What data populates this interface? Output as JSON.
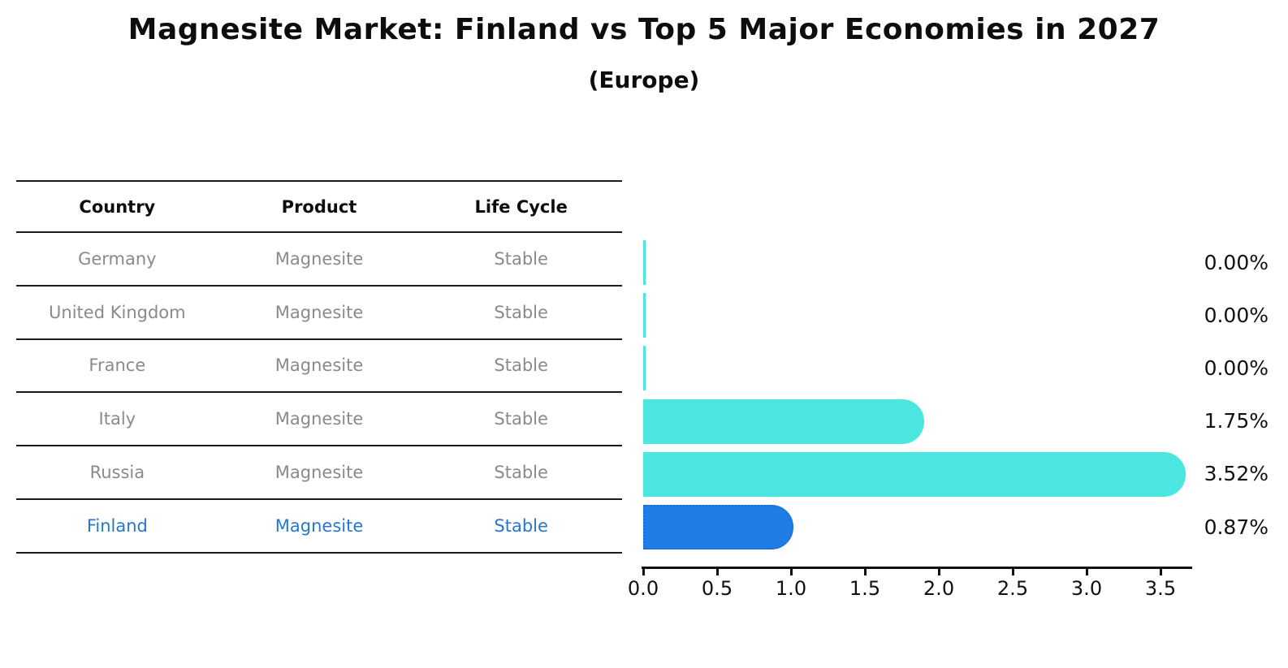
{
  "title": "Magnesite Market: Finland vs Top 5 Major Economies in 2027",
  "subtitle": "(Europe)",
  "table": {
    "headers": [
      "Country",
      "Product",
      "Life Cycle"
    ],
    "rows": [
      {
        "country": "Germany",
        "product": "Magnesite",
        "life_cycle": "Stable"
      },
      {
        "country": "United Kingdom",
        "product": "Magnesite",
        "life_cycle": "Stable"
      },
      {
        "country": "France",
        "product": "Magnesite",
        "life_cycle": "Stable"
      },
      {
        "country": "Italy",
        "product": "Magnesite",
        "life_cycle": "Stable"
      },
      {
        "country": "Russia",
        "product": "Magnesite",
        "life_cycle": "Stable"
      },
      {
        "country": "Finland",
        "product": "Magnesite",
        "life_cycle": "Stable"
      }
    ],
    "highlighted_row": "Finland"
  },
  "chart_data": {
    "type": "bar",
    "orientation": "horizontal",
    "title": "Magnesite Market: Finland vs Top 5 Major Economies in 2027",
    "subtitle": "(Europe)",
    "categories": [
      "Germany",
      "United Kingdom",
      "France",
      "Italy",
      "Russia",
      "Finland"
    ],
    "values": [
      0.0,
      0.0,
      0.0,
      1.75,
      3.52,
      0.87
    ],
    "value_labels": [
      "0.00%",
      "0.00%",
      "0.00%",
      "1.75%",
      "3.52%",
      "0.87%"
    ],
    "unit": "%",
    "xlabel": "",
    "ylabel": "",
    "xlim": [
      0,
      3.7
    ],
    "xticks": [
      0.0,
      0.5,
      1.0,
      1.5,
      2.0,
      2.5,
      3.0,
      3.5
    ],
    "xtick_labels": [
      "0.0",
      "0.5",
      "1.0",
      "1.5",
      "2.0",
      "2.5",
      "3.0",
      "3.5"
    ],
    "grid": false,
    "legend": false,
    "bar_color": "#4AE6DF",
    "highlight_category": "Finland",
    "highlight_color": "#207DE6",
    "highlight_border_color": "#1B6FD4"
  },
  "colors": {
    "text_dark": "#111111",
    "text_gray": "#8a8a8a",
    "highlight_text": "#2577d0",
    "axis": "#111111"
  }
}
